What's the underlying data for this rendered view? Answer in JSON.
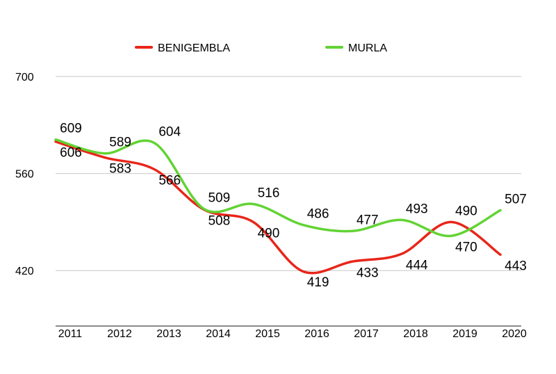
{
  "chart_data": {
    "type": "line",
    "categories": [
      "2011",
      "2012",
      "2013",
      "2014",
      "2015",
      "2016",
      "2017",
      "2018",
      "2019",
      "2020"
    ],
    "series": [
      {
        "name": "BENIGEMBLA",
        "color": "#e8261a",
        "values": [
          606,
          583,
          566,
          508,
          490,
          419,
          433,
          444,
          490,
          443
        ]
      },
      {
        "name": "MURLA",
        "color": "#62d334",
        "values": [
          609,
          589,
          604,
          509,
          516,
          486,
          477,
          493,
          470,
          507
        ]
      }
    ],
    "y_ticks": [
      "420",
      "560",
      "700"
    ],
    "ylim": [
      340,
      700
    ],
    "grid": true,
    "smooth": true,
    "legend": "top"
  }
}
